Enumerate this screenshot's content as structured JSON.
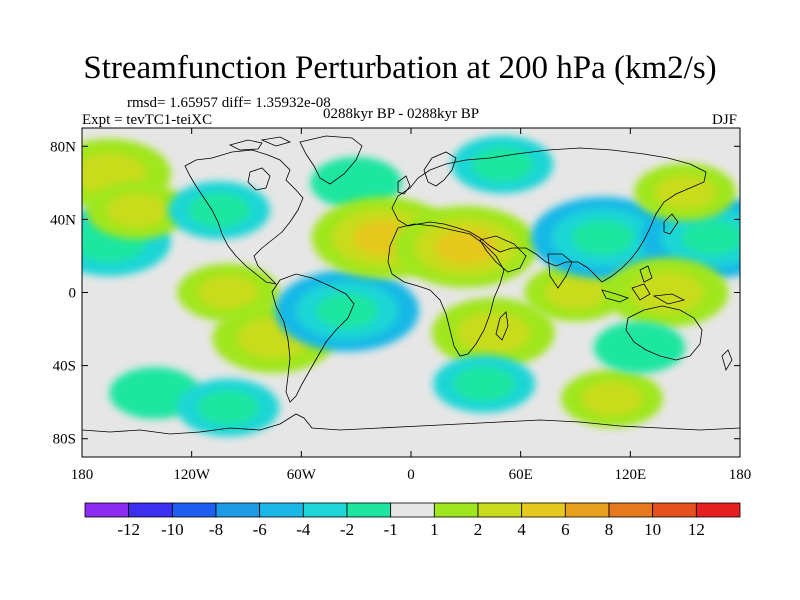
{
  "title": "Streamfunction Perturbation at 200 hPa (km2/s)",
  "stats_line": "rmsd= 1.65957 diff= 1.35932e-08",
  "experiment_label": "Expt = tevTC1-teiXC",
  "period_label": "0288kyr BP - 0288kyr BP",
  "season_label": "DJF",
  "map": {
    "projection": "cylindrical-equidistant",
    "lon_range": [
      -180,
      180
    ],
    "lat_range": [
      -90,
      90
    ],
    "lon_ticks": [
      {
        "value": -180,
        "label": "180"
      },
      {
        "value": -120,
        "label": "120W"
      },
      {
        "value": -60,
        "label": "60W"
      },
      {
        "value": 0,
        "label": "0"
      },
      {
        "value": 60,
        "label": "60E"
      },
      {
        "value": 120,
        "label": "120E"
      },
      {
        "value": 180,
        "label": "180"
      }
    ],
    "lat_ticks": [
      {
        "value": 80,
        "label": "80N"
      },
      {
        "value": 40,
        "label": "40N"
      },
      {
        "value": 0,
        "label": "0"
      },
      {
        "value": -40,
        "label": "40S"
      },
      {
        "value": -80,
        "label": "80S"
      }
    ],
    "background_color": "#e6e6e6"
  },
  "colorbar": {
    "colors": [
      "#8c2cf0",
      "#3b2ff0",
      "#1e5ef0",
      "#1e9be6",
      "#19b8e6",
      "#1ed6d6",
      "#1ee6a0",
      "#e6e6e6",
      "#a0e61e",
      "#c8dc1e",
      "#e6c81e",
      "#e6a01e",
      "#e6781e",
      "#e6501e",
      "#e61e1e"
    ],
    "labels": [
      "-12",
      "-10",
      "-8",
      "-6",
      "-4",
      "-2",
      "-1",
      "1",
      "2",
      "4",
      "6",
      "8",
      "10",
      "12"
    ]
  },
  "chart_data": {
    "type": "contour-map",
    "title": "Streamfunction Perturbation at 200 hPa (km2/s)",
    "variable": "Streamfunction Perturbation",
    "level": "200 hPa",
    "units": "km2/s",
    "season": "DJF",
    "rmsd": 1.65957,
    "diff": 1.35932e-08,
    "contour_levels": [
      -12,
      -10,
      -8,
      -6,
      -4,
      -2,
      -1,
      1,
      2,
      4,
      6,
      8,
      10,
      12
    ],
    "anomalies": [
      {
        "lon": -165,
        "lat": 65,
        "value": 3
      },
      {
        "lon": -165,
        "lat": 28,
        "value": -3
      },
      {
        "lon": -150,
        "lat": 45,
        "value": 2
      },
      {
        "lon": -105,
        "lat": 45,
        "value": -2
      },
      {
        "lon": -100,
        "lat": 0,
        "value": 2
      },
      {
        "lon": -75,
        "lat": -25,
        "value": 3
      },
      {
        "lon": -30,
        "lat": 60,
        "value": -1.5
      },
      {
        "lon": -35,
        "lat": -10,
        "value": -4
      },
      {
        "lon": -140,
        "lat": -55,
        "value": -1.5
      },
      {
        "lon": -100,
        "lat": -63,
        "value": -2
      },
      {
        "lon": -15,
        "lat": 30,
        "value": 4
      },
      {
        "lon": 30,
        "lat": 25,
        "value": 4
      },
      {
        "lon": 45,
        "lat": -22,
        "value": 3
      },
      {
        "lon": 50,
        "lat": 70,
        "value": -2
      },
      {
        "lon": 40,
        "lat": -50,
        "value": -2
      },
      {
        "lon": 90,
        "lat": 0,
        "value": 2
      },
      {
        "lon": 105,
        "lat": 30,
        "value": -4
      },
      {
        "lon": 165,
        "lat": 30,
        "value": -4
      },
      {
        "lon": 140,
        "lat": 0,
        "value": 3
      },
      {
        "lon": 150,
        "lat": 55,
        "value": 2
      },
      {
        "lon": 110,
        "lat": -58,
        "value": 2
      },
      {
        "lon": 125,
        "lat": -30,
        "value": -1.5
      }
    ]
  }
}
